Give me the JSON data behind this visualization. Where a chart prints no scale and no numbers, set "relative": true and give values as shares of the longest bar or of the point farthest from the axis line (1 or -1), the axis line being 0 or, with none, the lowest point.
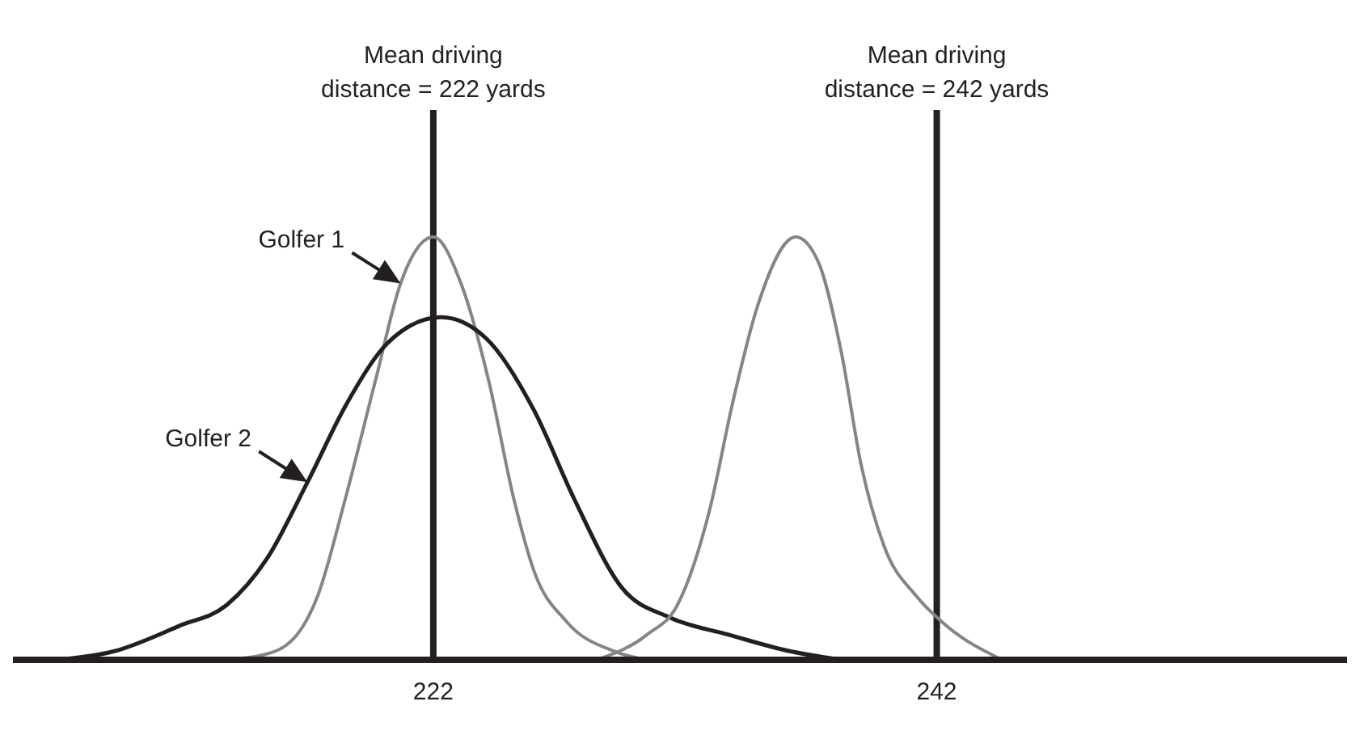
{
  "chart_data": {
    "type": "line",
    "relative": true,
    "marker": "none",
    "line_style": "solid",
    "grid": false,
    "xlim": [
      205.3,
      258.3
    ],
    "xticks": [
      222,
      242
    ],
    "series": [
      {
        "name": "Golfer 1",
        "color": "#858585",
        "x": [
          213.8,
          215.7,
          217.4,
          218.5,
          219.7,
          220.7,
          222,
          223.1,
          224.2,
          225.2,
          226.0,
          227.3,
          229.2,
          230.5
        ],
        "values": [
          0,
          0.02,
          0.15,
          0.38,
          0.66,
          0.89,
          1,
          0.89,
          0.66,
          0.38,
          0.21,
          0.09,
          0.02,
          0
        ]
      },
      {
        "name": "Golfer 2",
        "color": "#231f20",
        "x": [
          207.1,
          209.3,
          211.9,
          213.8,
          215.4,
          217.0,
          218.6,
          220.2,
          222.3,
          224.1,
          226.0,
          227.6,
          229.5,
          231.4,
          233.7,
          236.2,
          238.2
        ],
        "values": [
          0,
          0.02,
          0.08,
          0.13,
          0.24,
          0.42,
          0.61,
          0.75,
          0.81,
          0.76,
          0.59,
          0.38,
          0.17,
          0.1,
          0.06,
          0.02,
          0
        ]
      },
      {
        "color": "#858585",
        "x": [
          228.5,
          230.5,
          231.7,
          233.0,
          233.9,
          234.9,
          236.4,
          237.3,
          238.2,
          239.0,
          239.9,
          241.2,
          242.4,
          244.6
        ],
        "values": [
          0,
          0.06,
          0.13,
          0.36,
          0.61,
          0.84,
          1,
          0.94,
          0.73,
          0.46,
          0.27,
          0.15,
          0.08,
          0
        ]
      }
    ],
    "ref_lines": [
      {
        "axis": "x",
        "value": 222,
        "label": "Mean driving\ndistance = 222 yards",
        "color": "#231f20"
      },
      {
        "axis": "x",
        "value": 242,
        "label": "Mean driving\ndistance = 242 yards",
        "color": "#231f20"
      }
    ]
  }
}
